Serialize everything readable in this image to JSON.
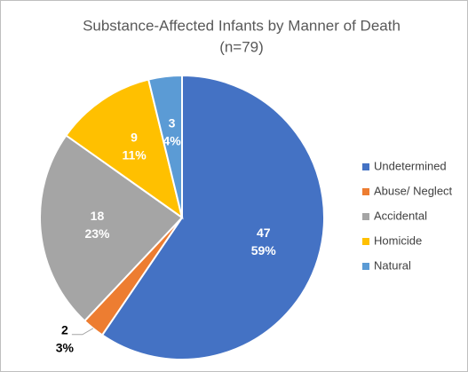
{
  "chart_data": {
    "type": "pie",
    "title": "Substance-Affected Infants by Manner of Death",
    "subtitle": "(n=79)",
    "categories": [
      "Undetermined",
      "Abuse/ Neglect",
      "Accidental",
      "Homicide",
      "Natural"
    ],
    "values": [
      47,
      2,
      18,
      9,
      3
    ],
    "percent_labels": [
      "59%",
      "3%",
      "23%",
      "11%",
      "4%"
    ],
    "colors": [
      "#4472c4",
      "#ed7d31",
      "#a5a5a5",
      "#ffc000",
      "#5b9bd5"
    ],
    "legend": "right"
  }
}
